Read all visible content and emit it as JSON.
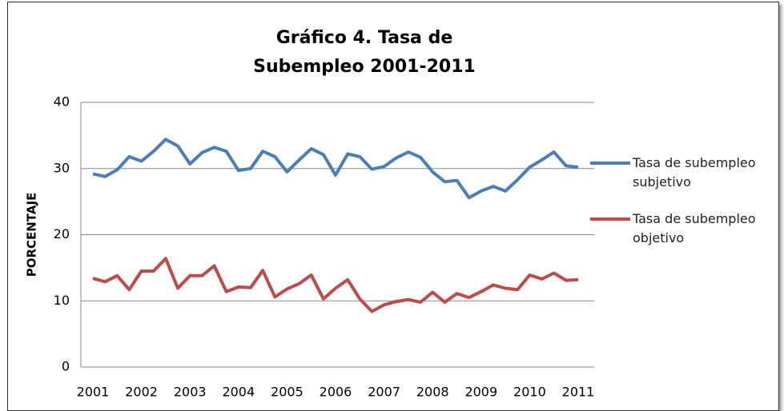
{
  "chart_data": {
    "type": "line",
    "title": "Gráfico 4. Tasa de Subempleo 2001-2011",
    "y_label": "PORCENTAJE",
    "categories": [
      "2001",
      null,
      null,
      null,
      "2002",
      null,
      null,
      null,
      "2003",
      null,
      null,
      null,
      "2004",
      null,
      null,
      null,
      "2005",
      null,
      null,
      null,
      "2006",
      null,
      null,
      null,
      "2007",
      null,
      null,
      null,
      "2008",
      null,
      null,
      null,
      "2009",
      null,
      null,
      null,
      "2010",
      null,
      null,
      null,
      "2011"
    ],
    "series": [
      {
        "name": "Tasa de subempleo subjetivo",
        "color": "#4a7ebb",
        "values": [
          29.2,
          28.8,
          29.8,
          31.8,
          31.1,
          32.6,
          34.4,
          33.4,
          30.7,
          32.4,
          33.2,
          32.6,
          29.7,
          30.0,
          32.6,
          31.8,
          29.5,
          31.3,
          33.0,
          32.1,
          29.0,
          32.2,
          31.8,
          29.9,
          30.3,
          31.6,
          32.5,
          31.7,
          29.5,
          28.0,
          28.2,
          25.6,
          26.6,
          27.3,
          26.6,
          28.3,
          30.2,
          31.3,
          32.5,
          30.4,
          30.2
        ]
      },
      {
        "name": "Tasa de subempleo objetivo",
        "color": "#be4b48",
        "values": [
          13.4,
          12.9,
          13.8,
          11.7,
          14.5,
          14.5,
          16.4,
          11.9,
          13.8,
          13.8,
          15.3,
          11.4,
          12.1,
          12.0,
          14.6,
          10.6,
          11.8,
          12.6,
          13.9,
          10.3,
          11.9,
          13.2,
          10.3,
          8.4,
          9.4,
          9.9,
          10.2,
          9.8,
          11.3,
          9.8,
          11.1,
          10.5,
          11.4,
          12.4,
          11.9,
          11.7,
          13.9,
          13.3,
          14.2,
          13.1,
          13.2
        ]
      }
    ],
    "ylim": [
      0,
      40
    ],
    "yticks": [
      0,
      10,
      20,
      30,
      40
    ],
    "grid": true
  }
}
